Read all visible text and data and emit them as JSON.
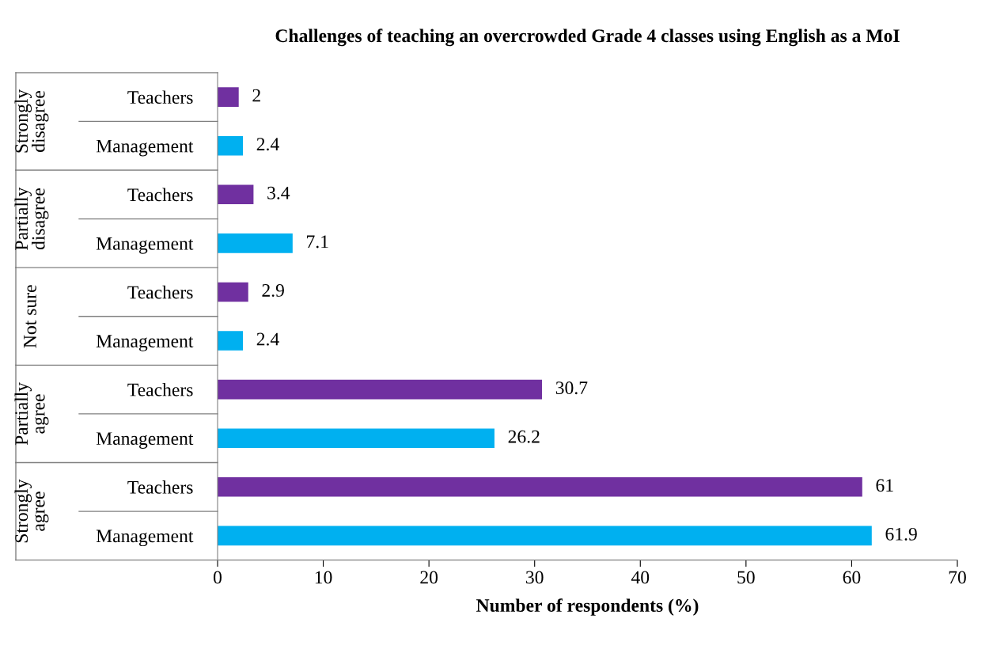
{
  "chart_data": {
    "type": "bar",
    "orientation": "horizontal",
    "title": "Challenges of teaching an overcrowded Grade 4 classes using English as a MoI",
    "xlabel": "Number of respondents (%)",
    "categories": [
      "Teachers",
      "Management",
      "Teachers",
      "Management",
      "Teachers",
      "Management",
      "Teachers",
      "Management",
      "Teachers",
      "Management"
    ],
    "values": [
      2,
      2.4,
      3.4,
      7.1,
      2.9,
      2.4,
      30.7,
      26.2,
      61,
      61.9
    ],
    "colors": [
      "#7030a0",
      "#00b0f0",
      "#7030a0",
      "#00b0f0",
      "#7030a0",
      "#00b0f0",
      "#7030a0",
      "#00b0f0",
      "#7030a0",
      "#00b0f0"
    ],
    "annotations": [
      "Strongly\ndisagree",
      "Partially\ndisagree",
      "Not sure",
      "Partially\nagree",
      "Strongly\nagree"
    ],
    "data_labels": true,
    "xlim": [
      0,
      70
    ],
    "xticks": [
      0,
      10,
      20,
      30,
      40,
      50,
      60,
      70
    ],
    "grid": false,
    "legend": false
  }
}
